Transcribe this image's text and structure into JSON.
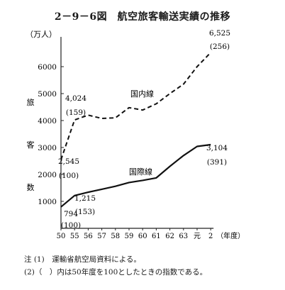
{
  "title": "2－9－6図　航空旅客輸送実績の推移",
  "chart_data": {
    "type": "line",
    "title": "2－9－6図　航空旅客輸送実績の推移",
    "ylabel": [
      "旅",
      "客",
      "数"
    ],
    "yunit": "（万人）",
    "xunit": "（年度）",
    "categories": [
      "50",
      "55",
      "56",
      "57",
      "58",
      "59",
      "60",
      "61",
      "62",
      "63",
      "元",
      "2"
    ],
    "y_ticks": [
      1000,
      2000,
      3000,
      4000,
      5000,
      6000
    ],
    "ylim": [
      0,
      6800
    ],
    "grid": false,
    "legend": "inline labels",
    "series": [
      {
        "name": "国内線",
        "style": "dashed",
        "values": [
          2545,
          4024,
          4200,
          4080,
          4100,
          4480,
          4390,
          4620,
          5000,
          5350,
          6000,
          6525
        ]
      },
      {
        "name": "国際線",
        "style": "solid",
        "values": [
          794,
          1215,
          1340,
          1450,
          1560,
          1700,
          1780,
          1870,
          2300,
          2700,
          3040,
          3104
        ]
      }
    ],
    "annotations": [
      {
        "series": "国内線",
        "category": "50",
        "value": "2,545",
        "index": "(100)"
      },
      {
        "series": "国内線",
        "category": "55",
        "value": "4,024",
        "index": "(159)"
      },
      {
        "series": "国内線",
        "category": "2",
        "value": "6,525",
        "index": "(256)"
      },
      {
        "series": "国際線",
        "category": "50",
        "value": "794",
        "index": "(100)"
      },
      {
        "series": "国際線",
        "category": "55",
        "value": "1,215",
        "index": "(153)"
      },
      {
        "series": "国際線",
        "category": "2",
        "value": "3,104",
        "index": "(391)"
      }
    ]
  },
  "notes": [
    "注 (1)　運輸省航空局資料による。",
    "(2)（　）内は50年度を100としたときの指数である。"
  ]
}
